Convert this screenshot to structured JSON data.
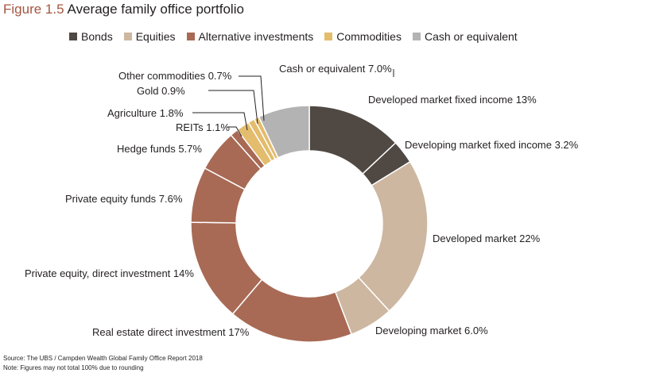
{
  "figure": {
    "number": "Figure 1.5",
    "title": "Average family office portfolio"
  },
  "legend": [
    {
      "label": "Bonds",
      "color": "#4f4843"
    },
    {
      "label": "Equities",
      "color": "#cdb7a0"
    },
    {
      "label": "Alternative investments",
      "color": "#a86a55"
    },
    {
      "label": "Commodities",
      "color": "#e3bc6d"
    },
    {
      "label": "Cash or equivalent",
      "color": "#b3b3b4"
    }
  ],
  "chart_data": {
    "type": "pie",
    "donut": true,
    "series": [
      {
        "name": "Bonds",
        "color": "#4f4843"
      },
      {
        "name": "Equities",
        "color": "#cdb7a0"
      },
      {
        "name": "Alternative investments",
        "color": "#a86a55"
      },
      {
        "name": "Commodities",
        "color": "#e3bc6d"
      },
      {
        "name": "Cash or equivalent",
        "color": "#b3b3b4"
      }
    ],
    "slices": [
      {
        "label": "Developed market fixed income 13%",
        "value": 13,
        "group": "Bonds"
      },
      {
        "label": "Developing market fixed income 3.2%",
        "value": 3.2,
        "group": "Bonds"
      },
      {
        "label": "Developed market 22%",
        "value": 22,
        "group": "Equities"
      },
      {
        "label": "Developing market 6.0%",
        "value": 6.0,
        "group": "Equities"
      },
      {
        "label": "Real estate direct investment 17%",
        "value": 17,
        "group": "Alternative investments"
      },
      {
        "label": "Private equity, direct investment 14%",
        "value": 14,
        "group": "Alternative investments"
      },
      {
        "label": "Private equity funds 7.6%",
        "value": 7.6,
        "group": "Alternative investments"
      },
      {
        "label": "Hedge funds 5.7%",
        "value": 5.7,
        "group": "Alternative investments"
      },
      {
        "label": "REITs 1.1%",
        "value": 1.1,
        "group": "Alternative investments"
      },
      {
        "label": "Agriculture 1.8%",
        "value": 1.8,
        "group": "Commodities"
      },
      {
        "label": "Gold 0.9%",
        "value": 0.9,
        "group": "Commodities"
      },
      {
        "label": "Other commodities 0.7%",
        "value": 0.7,
        "group": "Commodities"
      },
      {
        "label": "Cash or equivalent 7.0%",
        "value": 7.0,
        "group": "Cash or equivalent"
      }
    ]
  },
  "footer": {
    "source": "Source: The UBS / Campden Wealth Global Family Office Report 2018",
    "note": "Note: Figures may not total 100% due to rounding"
  }
}
